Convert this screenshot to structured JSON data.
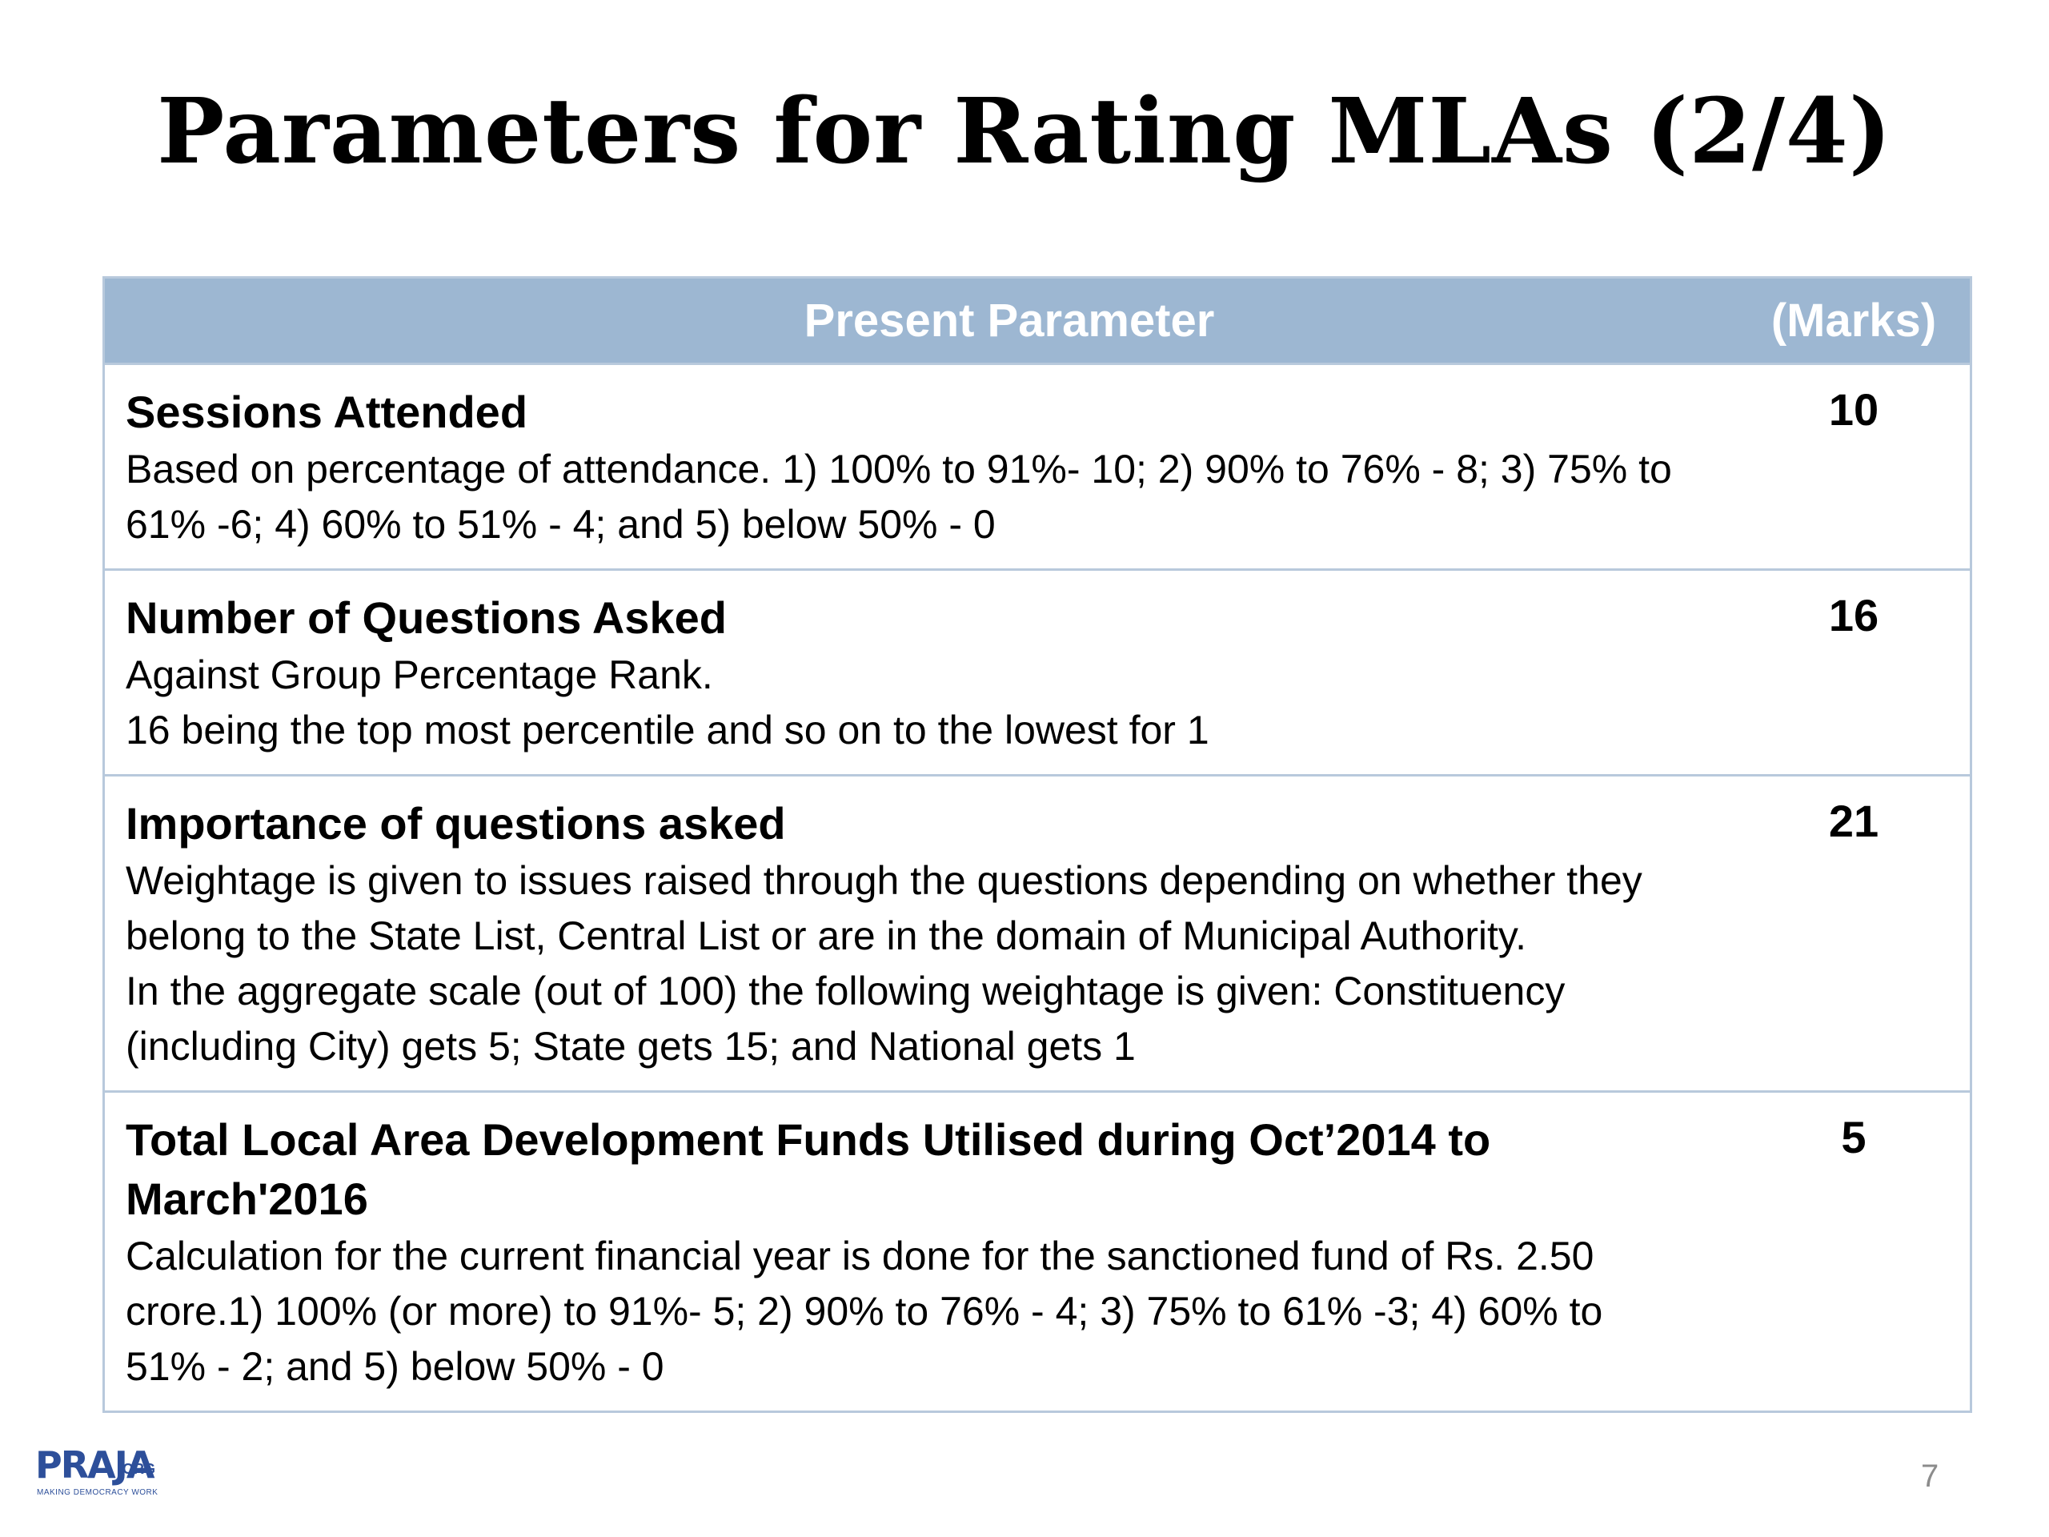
{
  "slide": {
    "title": "Parameters for Rating MLAs (2/4)",
    "page_number": "7"
  },
  "table": {
    "header": {
      "parameter": "Present Parameter",
      "marks": "(Marks)"
    },
    "rows": [
      {
        "title": "Sessions Attended",
        "description": "Based on percentage of attendance. 1) 100% to 91%- 10; 2) 90% to 76% - 8; 3) 75% to\n61% -6; 4) 60% to 51% - 4; and 5) below 50% - 0",
        "marks": "10"
      },
      {
        "title": "Number of Questions Asked",
        "description": "Against Group Percentage Rank.\n16 being the top most percentile and so on to the lowest for 1",
        "marks": "16"
      },
      {
        "title": "Importance of questions asked",
        "description": "Weightage is given to issues raised through the questions depending on whether they\nbelong to the State List, Central List or are in the domain of Municipal Authority.\nIn the aggregate scale (out of 100) the following weightage is given: Constituency\n(including City) gets 5; State gets 15; and National gets 1",
        "marks": "21"
      },
      {
        "title": "Total Local Area Development Funds Utilised during Oct’2014 to\nMarch'2016",
        "description": "Calculation for the current financial year is done for the sanctioned fund of Rs. 2.50\ncrore.1) 100% (or more) to 91%- 5; 2) 90% to 76% - 4; 3) 75% to 61% -3; 4) 60% to\n51% - 2; and 5) below 50% - 0",
        "marks": "5"
      }
    ]
  },
  "logo": {
    "main": "PRAJA",
    "suffix": ".ORG",
    "tagline": "MAKING DEMOCRACY WORK"
  },
  "colors": {
    "header_bg": "#9db7d2",
    "border": "#b8c9dc",
    "logo": "#2d4f9a"
  }
}
